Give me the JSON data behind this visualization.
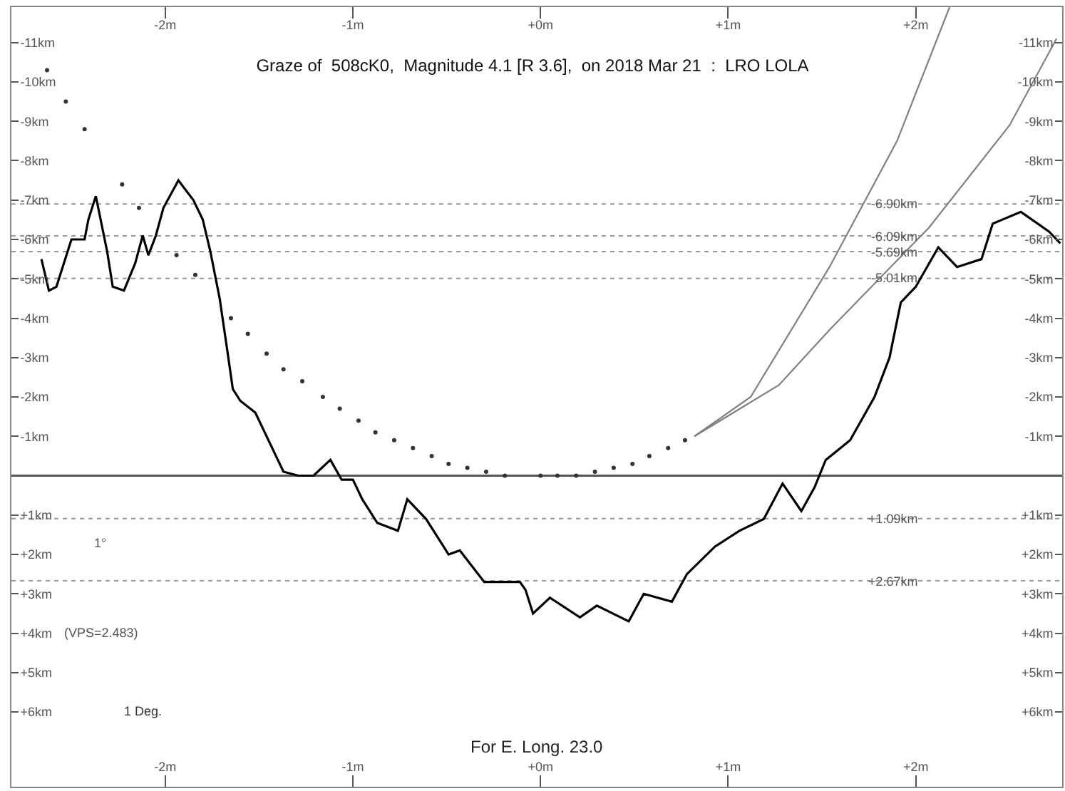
{
  "chart_data": {
    "type": "line",
    "title": "Graze of  508cK0,  Magnitude 4.1 [R 3.6],  on 2018 Mar 21  :  LRO LOLA",
    "series": [
      {
        "color": "#000000",
        "x": [
          -2.66,
          -2.62,
          -2.58,
          -2.5,
          -2.43,
          -2.41,
          -2.37,
          -2.31,
          -2.28,
          -2.22,
          -2.16,
          -2.12,
          -2.09,
          -2.05,
          -2.01,
          -1.93,
          -1.85,
          -1.8,
          -1.76,
          -1.71,
          -1.67,
          -1.64,
          -1.6,
          -1.52,
          -1.42,
          -1.37,
          -1.29,
          -1.21,
          -1.12,
          -1.06,
          -1.0,
          -0.95,
          -0.87,
          -0.76,
          -0.71,
          -0.61,
          -0.49,
          -0.43,
          -0.3,
          -0.11,
          -0.08,
          -0.04,
          0.05,
          0.21,
          0.3,
          0.47,
          0.55,
          0.7,
          0.78,
          0.93,
          1.06,
          1.19,
          1.29,
          1.39,
          1.46,
          1.52,
          1.65,
          1.78,
          1.86,
          1.92,
          2.0,
          2.12,
          2.22,
          2.35,
          2.41,
          2.56,
          2.71,
          2.77
        ],
        "values": [
          -5.5,
          -4.7,
          -4.8,
          -6.0,
          -6.0,
          -6.5,
          -7.1,
          -5.7,
          -4.8,
          -4.7,
          -5.4,
          -6.1,
          -5.6,
          -6.1,
          -6.8,
          -7.5,
          -7.0,
          -6.5,
          -5.7,
          -4.5,
          -3.2,
          -2.2,
          -1.9,
          -1.6,
          -0.6,
          -0.1,
          0.0,
          0.0,
          -0.4,
          0.1,
          0.1,
          0.6,
          1.2,
          1.4,
          0.6,
          1.1,
          2.0,
          1.9,
          2.7,
          2.7,
          2.9,
          3.5,
          3.1,
          3.6,
          3.3,
          3.7,
          3.0,
          3.2,
          2.5,
          1.8,
          1.4,
          1.1,
          0.2,
          0.9,
          0.3,
          -0.4,
          -0.9,
          -2.0,
          -3.0,
          -4.4,
          -4.8,
          -5.8,
          -5.3,
          -5.5,
          -6.4,
          -6.7,
          -6.2,
          -5.9
        ]
      },
      {
        "type": "scatter",
        "color": "#333333",
        "marker": "circle",
        "x": [
          -2.63,
          -2.53,
          -2.43,
          -2.23,
          -2.14,
          -1.94,
          -1.84,
          -1.65,
          -1.56,
          -1.46,
          -1.37,
          -1.27,
          -1.16,
          -1.07,
          -0.97,
          -0.88,
          -0.78,
          -0.68,
          -0.58,
          -0.49,
          -0.39,
          -0.29,
          -0.19,
          0.0,
          0.09,
          0.19,
          0.29,
          0.39,
          0.49,
          0.58,
          0.68,
          0.77
        ],
        "values": [
          -10.3,
          -9.5,
          -8.8,
          -7.4,
          -6.8,
          -5.6,
          -5.1,
          -4.0,
          -3.6,
          -3.1,
          -2.7,
          -2.4,
          -2.0,
          -1.7,
          -1.4,
          -1.1,
          -0.9,
          -0.7,
          -0.5,
          -0.3,
          -0.2,
          -0.1,
          0.0,
          0.0,
          0.0,
          0.0,
          -0.1,
          -0.2,
          -0.3,
          -0.5,
          -0.7,
          -0.9
        ]
      },
      {
        "color": "#808080",
        "x": [
          0.82,
          1.12,
          1.54,
          1.9,
          2.18
        ],
        "values": [
          -1.0,
          -2.0,
          -5.3,
          -8.5,
          -11.9
        ]
      },
      {
        "color": "#808080",
        "x": [
          0.82,
          1.27,
          1.54,
          2.07,
          2.5,
          2.75
        ],
        "values": [
          -1.0,
          -2.3,
          -3.7,
          -6.3,
          -8.9,
          -11.1
        ]
      }
    ],
    "xlim": [
      -2.82,
      2.78
    ],
    "xticks": [
      {
        "value": -2,
        "label": "-2m"
      },
      {
        "value": -1,
        "label": "-1m"
      },
      {
        "value": 0,
        "label": "+0m"
      },
      {
        "value": 1,
        "label": "+1m"
      },
      {
        "value": 2,
        "label": "+2m"
      }
    ],
    "x2lim": [
      -2.82,
      2.78
    ],
    "x2ticks": [
      {
        "value": -2,
        "label": "-2m"
      },
      {
        "value": -1,
        "label": "-1m"
      },
      {
        "value": 0,
        "label": "+0m"
      },
      {
        "value": 1,
        "label": "+1m"
      },
      {
        "value": 2,
        "label": "+2m"
      }
    ],
    "ylim": [
      7.9,
      -11.9
    ],
    "yticks": [
      {
        "value": -11,
        "label": "-11km"
      },
      {
        "value": -10,
        "label": "-10km"
      },
      {
        "value": -9,
        "label": "-9km"
      },
      {
        "value": -8,
        "label": "-8km"
      },
      {
        "value": -7,
        "label": "-7km"
      },
      {
        "value": -6,
        "label": "-6km"
      },
      {
        "value": -5,
        "label": "-5km"
      },
      {
        "value": -4,
        "label": "-4km"
      },
      {
        "value": -3,
        "label": "-3km"
      },
      {
        "value": -2,
        "label": "-2km"
      },
      {
        "value": -1,
        "label": "-1km"
      },
      {
        "value": 1,
        "label": "+1km"
      },
      {
        "value": 2,
        "label": "+2km"
      },
      {
        "value": 3,
        "label": "+3km"
      },
      {
        "value": 4,
        "label": "+4km"
      },
      {
        "value": 5,
        "label": "+5km"
      },
      {
        "value": 6,
        "label": "+6km"
      }
    ],
    "y2lim": [
      7.9,
      -11.9
    ],
    "y2ticks": [
      {
        "value": -11,
        "label": "-11km"
      },
      {
        "value": -10,
        "label": "-10km"
      },
      {
        "value": -9,
        "label": "-9km"
      },
      {
        "value": -8,
        "label": "-8km"
      },
      {
        "value": -7,
        "label": "-7km"
      },
      {
        "value": -6,
        "label": "-6km"
      },
      {
        "value": -5,
        "label": "-5km"
      },
      {
        "value": -4,
        "label": "-4km"
      },
      {
        "value": -3,
        "label": "-3km"
      },
      {
        "value": -2,
        "label": "-2km"
      },
      {
        "value": -1,
        "label": "-1km"
      },
      {
        "value": 1,
        "label": "+1km"
      },
      {
        "value": 2,
        "label": "+2km"
      },
      {
        "value": 3,
        "label": "+3km"
      },
      {
        "value": 4,
        "label": "+4km"
      },
      {
        "value": 5,
        "label": "+5km"
      },
      {
        "value": 6,
        "label": "+6km"
      }
    ],
    "ref_lines": [
      {
        "axis": "y",
        "value": 0,
        "color": "#555555",
        "line_style": "solid"
      },
      {
        "axis": "y",
        "value": -6.9,
        "label": "-6.90km",
        "color": "#999999",
        "line_style": "dotted"
      },
      {
        "axis": "y",
        "value": -6.09,
        "label": "-6.09km",
        "color": "#999999",
        "line_style": "dotted"
      },
      {
        "axis": "y",
        "value": -5.69,
        "label": "-5.69km",
        "color": "#999999",
        "line_style": "dotted"
      },
      {
        "axis": "y",
        "value": -5.01,
        "label": "-5.01km",
        "color": "#999999",
        "line_style": "dotted"
      },
      {
        "axis": "y",
        "value": 1.09,
        "label": "+1.09km",
        "color": "#999999",
        "line_style": "dotted"
      },
      {
        "axis": "y",
        "value": 2.67,
        "label": "+2.67km",
        "color": "#999999",
        "line_style": "dotted"
      }
    ],
    "annotations": [
      "1°",
      "(VPS=2.483)",
      "1 Deg.",
      "For E. Long. 23.0"
    ],
    "grid": false,
    "line_style": "solid"
  }
}
